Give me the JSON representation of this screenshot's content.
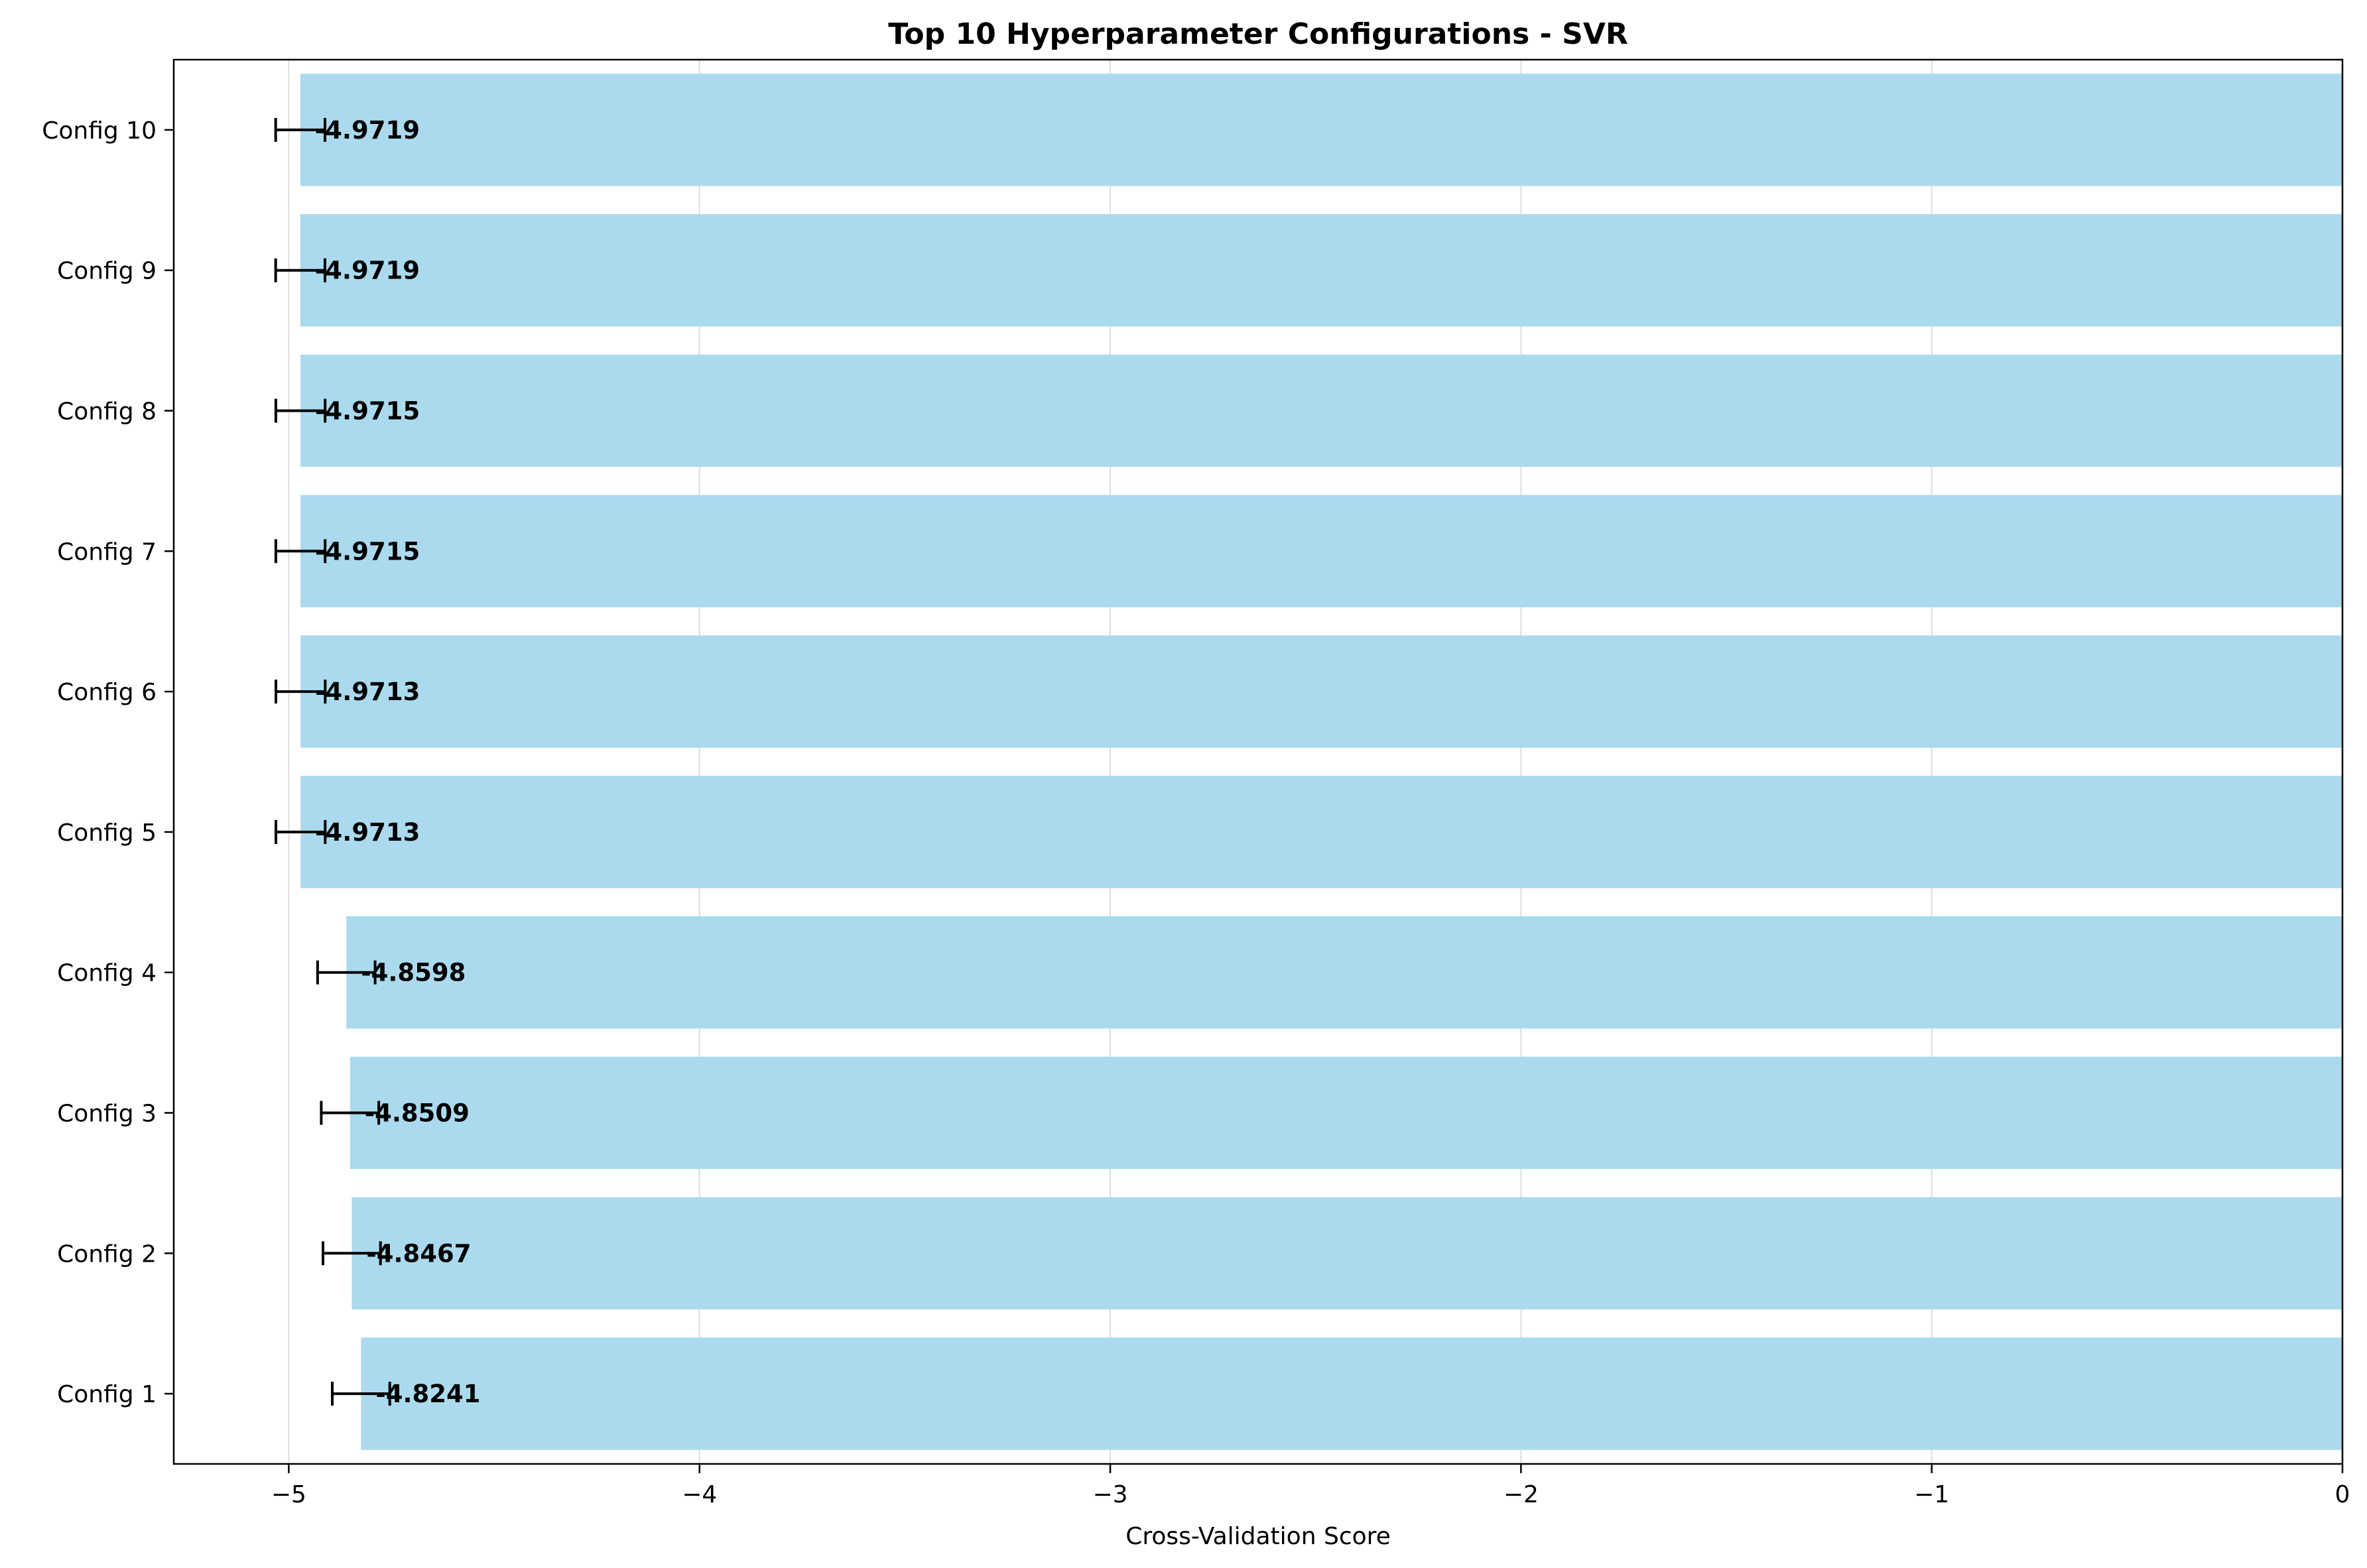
{
  "chart_data": {
    "type": "bar",
    "orientation": "horizontal",
    "title": "Top 10 Hyperparameter Configurations - SVR",
    "xlabel": "Cross-Validation Score",
    "ylabel": "",
    "xlim": [
      -5.28,
      0
    ],
    "xticks": [
      -5,
      -4,
      -3,
      -2,
      -1,
      0
    ],
    "xtick_labels": [
      "−5",
      "−4",
      "−3",
      "−2",
      "−1",
      "0"
    ],
    "grid": "x",
    "bar_color": "#abdaee",
    "error_color": "#000000",
    "categories": [
      "Config 1",
      "Config 2",
      "Config 3",
      "Config 4",
      "Config 5",
      "Config 6",
      "Config 7",
      "Config 8",
      "Config 9",
      "Config 10"
    ],
    "values": [
      -4.8241,
      -4.8467,
      -4.8509,
      -4.8598,
      -4.9713,
      -4.9713,
      -4.9715,
      -4.9715,
      -4.9719,
      -4.9719
    ],
    "errors": [
      0.07,
      0.07,
      0.07,
      0.07,
      0.06,
      0.06,
      0.06,
      0.06,
      0.06,
      0.06
    ],
    "value_labels": [
      "-4.8241",
      "-4.8467",
      "-4.8509",
      "-4.8598",
      "-4.9713",
      "-4.9713",
      "-4.9715",
      "-4.9715",
      "-4.9719",
      "-4.9719"
    ]
  }
}
